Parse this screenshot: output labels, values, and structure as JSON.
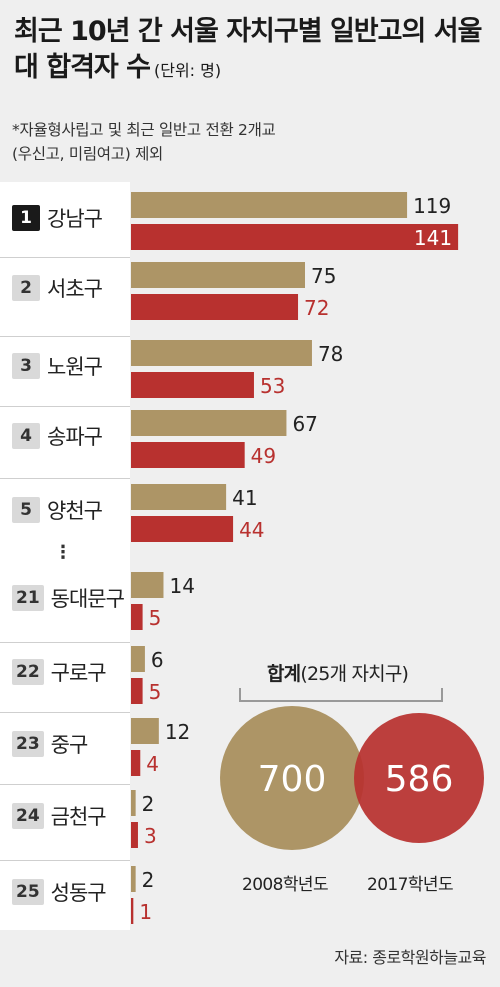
{
  "title": "최근 10년 간 서울 자치구별 일반고의 서울대 합격자 수",
  "unit": "(단위: 명)",
  "note_lines": [
    "*자율형사립고 및 최근 일반고 전환 2개교",
    "(우신고, 미림여고) 제외"
  ],
  "colors": {
    "y2008": "#ad9566",
    "y2017": "#b8312f",
    "highlight_rank": "#1a1a1a"
  },
  "ellipsis": "⋮",
  "chart_data": {
    "type": "bar",
    "orientation": "horizontal",
    "title": "최근 10년 간 서울 자치구별 일반고의 서울대 합격자 수",
    "categories": [
      "강남구",
      "서초구",
      "노원구",
      "송파구",
      "양천구",
      "동대문구",
      "구로구",
      "중구",
      "금천구",
      "성동구"
    ],
    "ranks": [
      "1",
      "2",
      "3",
      "4",
      "5",
      "21",
      "22",
      "23",
      "24",
      "25"
    ],
    "series": [
      {
        "name": "2008학년도",
        "values": [
          119,
          75,
          78,
          67,
          41,
          14,
          6,
          12,
          2,
          2
        ]
      },
      {
        "name": "2017학년도",
        "values": [
          141,
          72,
          53,
          49,
          44,
          5,
          5,
          4,
          3,
          1
        ]
      }
    ]
  },
  "totals": {
    "title_bold": "합계",
    "title_rest": "(25개 자치구)",
    "y2008_value": "700",
    "y2017_value": "586",
    "y2008_label": "2008학년도",
    "y2017_label": "2017학년도"
  },
  "source": "자료: 종로학원하늘교육"
}
